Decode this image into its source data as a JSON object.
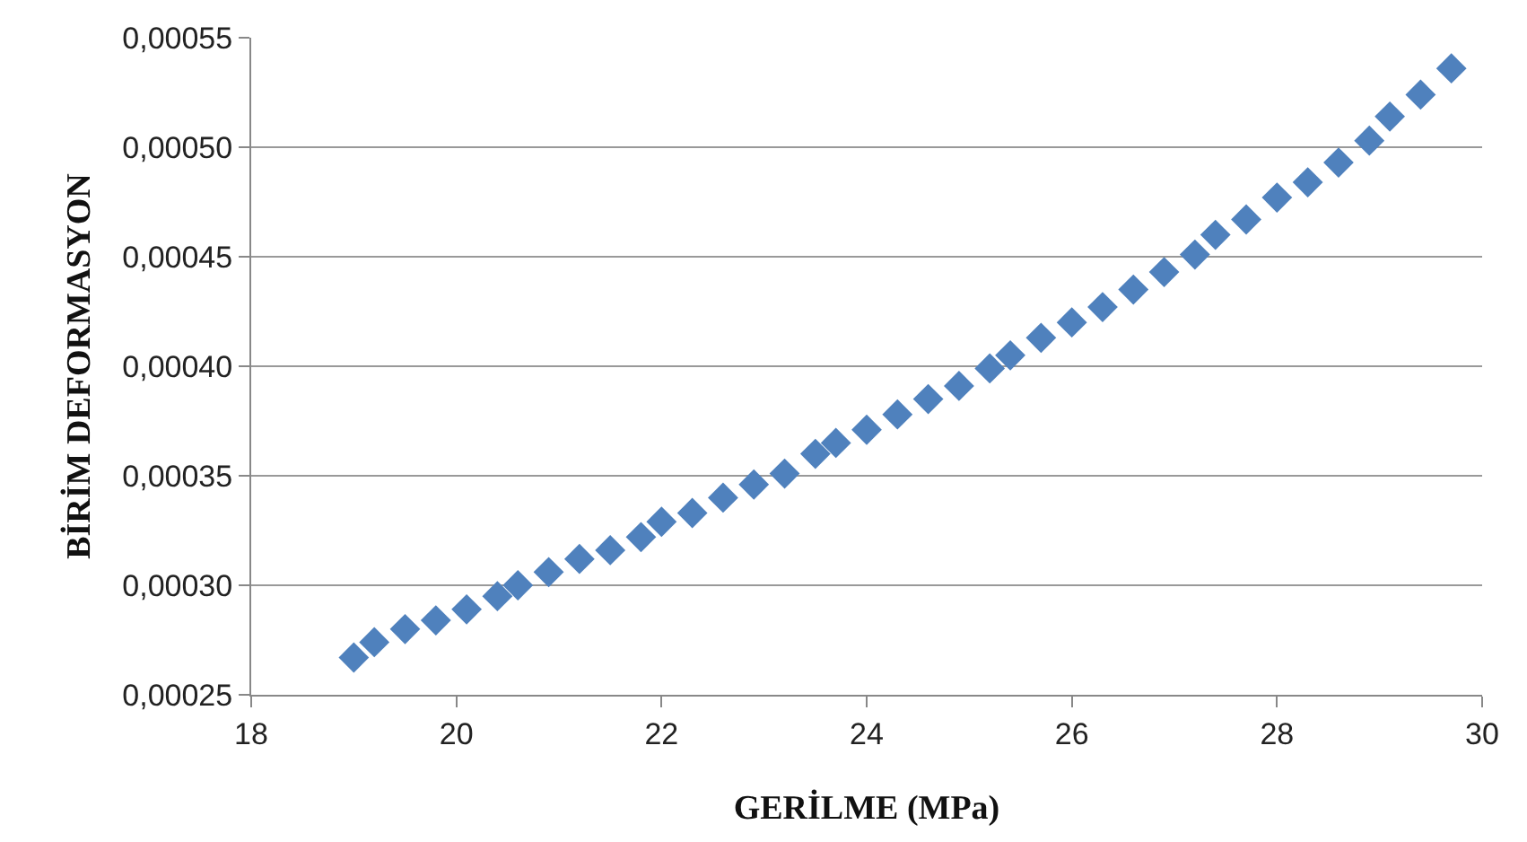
{
  "chart_data": {
    "type": "scatter",
    "xlabel": "GERİLME (MPa)",
    "ylabel": "BİRİM DEFORMASYON",
    "x": [
      19.0,
      19.2,
      19.5,
      19.8,
      20.1,
      20.4,
      20.6,
      20.9,
      21.2,
      21.5,
      21.8,
      22.0,
      22.3,
      22.6,
      22.9,
      23.2,
      23.5,
      23.7,
      24.0,
      24.3,
      24.6,
      24.9,
      25.2,
      25.4,
      25.7,
      26.0,
      26.3,
      26.6,
      26.9,
      27.2,
      27.4,
      27.7,
      28.0,
      28.3,
      28.6,
      28.9,
      29.1,
      29.4,
      29.7
    ],
    "series": [
      {
        "color": "#4f81bd",
        "values": [
          0.000267,
          0.000274,
          0.00028,
          0.000284,
          0.000289,
          0.000295,
          0.0003,
          0.000306,
          0.000312,
          0.000316,
          0.000322,
          0.000329,
          0.000333,
          0.00034,
          0.000346,
          0.000351,
          0.00036,
          0.000365,
          0.000371,
          0.000378,
          0.000385,
          0.000391,
          0.000399,
          0.000405,
          0.000413,
          0.00042,
          0.000427,
          0.000435,
          0.000443,
          0.000451,
          0.00046,
          0.000467,
          0.000477,
          0.000484,
          0.000493,
          0.000503,
          0.000514,
          0.000524,
          0.000536
        ]
      }
    ],
    "xlim": [
      18,
      30
    ],
    "xticks": [
      18,
      20,
      22,
      24,
      26,
      28,
      30
    ],
    "ylim": [
      0.00025,
      0.00055
    ],
    "yticks": [
      {
        "value": 0.00025,
        "label": "0,00025"
      },
      {
        "value": 0.0003,
        "label": "0,00030"
      },
      {
        "value": 0.00035,
        "label": "0,00035"
      },
      {
        "value": 0.0004,
        "label": "0,00040"
      },
      {
        "value": 0.00045,
        "label": "0,00045"
      },
      {
        "value": 0.0005,
        "label": "0,00050"
      },
      {
        "value": 0.00055,
        "label": "0,00055"
      }
    ],
    "grid": "y",
    "marker": "diamond"
  }
}
